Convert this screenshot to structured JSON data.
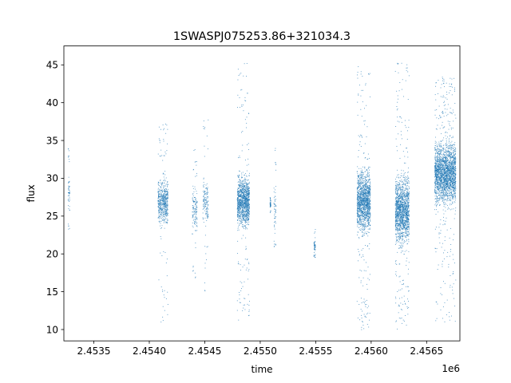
{
  "chart_data": {
    "type": "scatter",
    "title": "1SWASPJ075253.86+321034.3",
    "xlabel": "time",
    "ylabel": "flux",
    "x_offset_label": "1e6",
    "xlim": [
      2453230,
      2456800
    ],
    "ylim": [
      8.5,
      47.5
    ],
    "xticks": [
      2453500,
      2454000,
      2454500,
      2455000,
      2455500,
      2456000,
      2456500
    ],
    "xtick_labels": [
      "2.4535",
      "2.4540",
      "2.4545",
      "2.4550",
      "2.4555",
      "2.4560",
      "2.4565"
    ],
    "yticks": [
      10,
      15,
      20,
      25,
      30,
      35,
      40,
      45
    ],
    "ytick_labels": [
      "10",
      "15",
      "20",
      "25",
      "30",
      "35",
      "40",
      "45"
    ],
    "grid": false,
    "marker_color": "#1f77b4",
    "series": [
      {
        "name": "",
        "clusters": [
          {
            "x": [
              2453265,
              2453280
            ],
            "core": [
              24,
              32
            ],
            "outlier": [
              23,
              34.5
            ],
            "density": 0.6
          },
          {
            "x": [
              2454075,
              2454165
            ],
            "core": [
              22.5,
              31.5
            ],
            "outlier": [
              11,
              37.5
            ],
            "density": 4
          },
          {
            "x": [
              2454385,
              2454430
            ],
            "core": [
              22,
              30
            ],
            "outlier": [
              16.5,
              34
            ],
            "density": 1.5
          },
          {
            "x": [
              2454480,
              2454530
            ],
            "core": [
              23,
              31
            ],
            "outlier": [
              15,
              38.5
            ],
            "density": 1.5
          },
          {
            "x": [
              2454790,
              2454900
            ],
            "core": [
              22.5,
              31.5
            ],
            "outlier": [
              11,
              45.5
            ],
            "density": 7
          },
          {
            "x": [
              2455085,
              2455090
            ],
            "core": [
              26,
              27
            ],
            "outlier": [
              25.5,
              27.5
            ],
            "density": 0.2
          },
          {
            "x": [
              2455120,
              2455140
            ],
            "core": [
              22,
              31
            ],
            "outlier": [
              21,
              34
            ],
            "density": 0.6
          },
          {
            "x": [
              2455480,
              2455495
            ],
            "core": [
              20,
              22
            ],
            "outlier": [
              19.5,
              23.5
            ],
            "density": 0.5
          },
          {
            "x": [
              2455870,
              2455990
            ],
            "core": [
              21.5,
              32.5
            ],
            "outlier": [
              10,
              45
            ],
            "density": 8
          },
          {
            "x": [
              2456215,
              2456340
            ],
            "core": [
              19.5,
              32
            ],
            "outlier": [
              10,
              45.5
            ],
            "density": 8
          },
          {
            "x": [
              2456570,
              2456760
            ],
            "core": [
              25,
              36.5
            ],
            "outlier": [
              11,
              43.5
            ],
            "density": 8
          }
        ]
      }
    ]
  }
}
